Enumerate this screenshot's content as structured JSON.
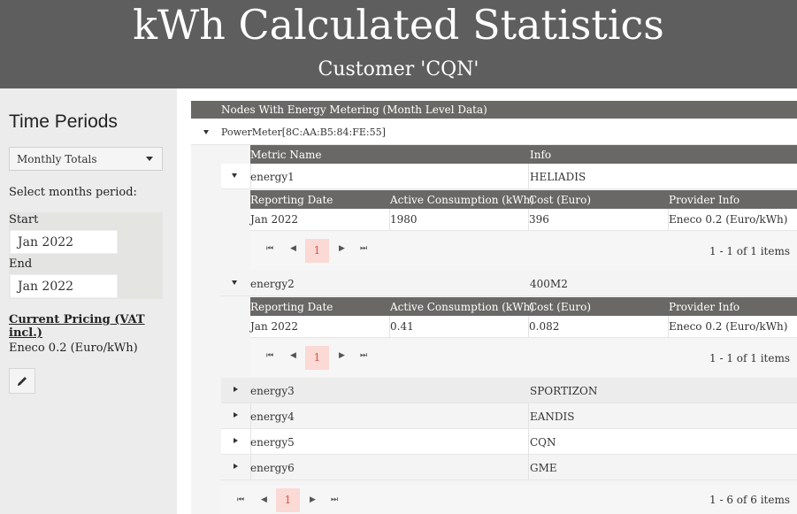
{
  "header": {
    "title": "kWh Calculated Statistics",
    "subtitle": "Customer 'CQN'"
  },
  "sidebar": {
    "heading": "Time Periods",
    "period_select": "Monthly Totals",
    "select_months_label": "Select months period:",
    "start_label": "Start",
    "start_value": "Jan 2022",
    "end_label": "End",
    "end_value": "Jan 2022",
    "pricing_heading": "Current Pricing (VAT incl.)",
    "pricing_value": "Eneco 0.2 (Euro/kWh)",
    "edit_icon": "pencil-icon"
  },
  "grid": {
    "header": "Nodes With Energy Metering (Month Level Data)",
    "node": "PowerMeter[8C:AA:B5:84:FE:55]",
    "columns": {
      "metric": "Metric Name",
      "info": "Info"
    },
    "sub_columns": {
      "date": "Reporting Date",
      "consumption": "Active Consumption (kWh)",
      "cost": "Cost (Euro)",
      "provider": "Provider Info"
    },
    "metrics": [
      {
        "name": "energy1",
        "info": "HELIADIS",
        "expanded": true,
        "rows": [
          {
            "date": "Jan 2022",
            "consumption": "1980",
            "cost": "396",
            "provider": "Eneco 0.2 (Euro/kWh)"
          }
        ],
        "pager_info": "1 - 1 of 1 items"
      },
      {
        "name": "energy2",
        "info": "400M2",
        "expanded": true,
        "rows": [
          {
            "date": "Jan 2022",
            "consumption": "0.41",
            "cost": "0.082",
            "provider": "Eneco 0.2 (Euro/kWh)"
          }
        ],
        "pager_info": "1 - 1 of 1 items"
      },
      {
        "name": "energy3",
        "info": "SPORTIZON"
      },
      {
        "name": "energy4",
        "info": "EANDIS"
      },
      {
        "name": "energy5",
        "info": "CQN"
      },
      {
        "name": "energy6",
        "info": "GME"
      }
    ],
    "current_page": "1",
    "bottom_pager_info": "1 - 6 of 6 items"
  }
}
